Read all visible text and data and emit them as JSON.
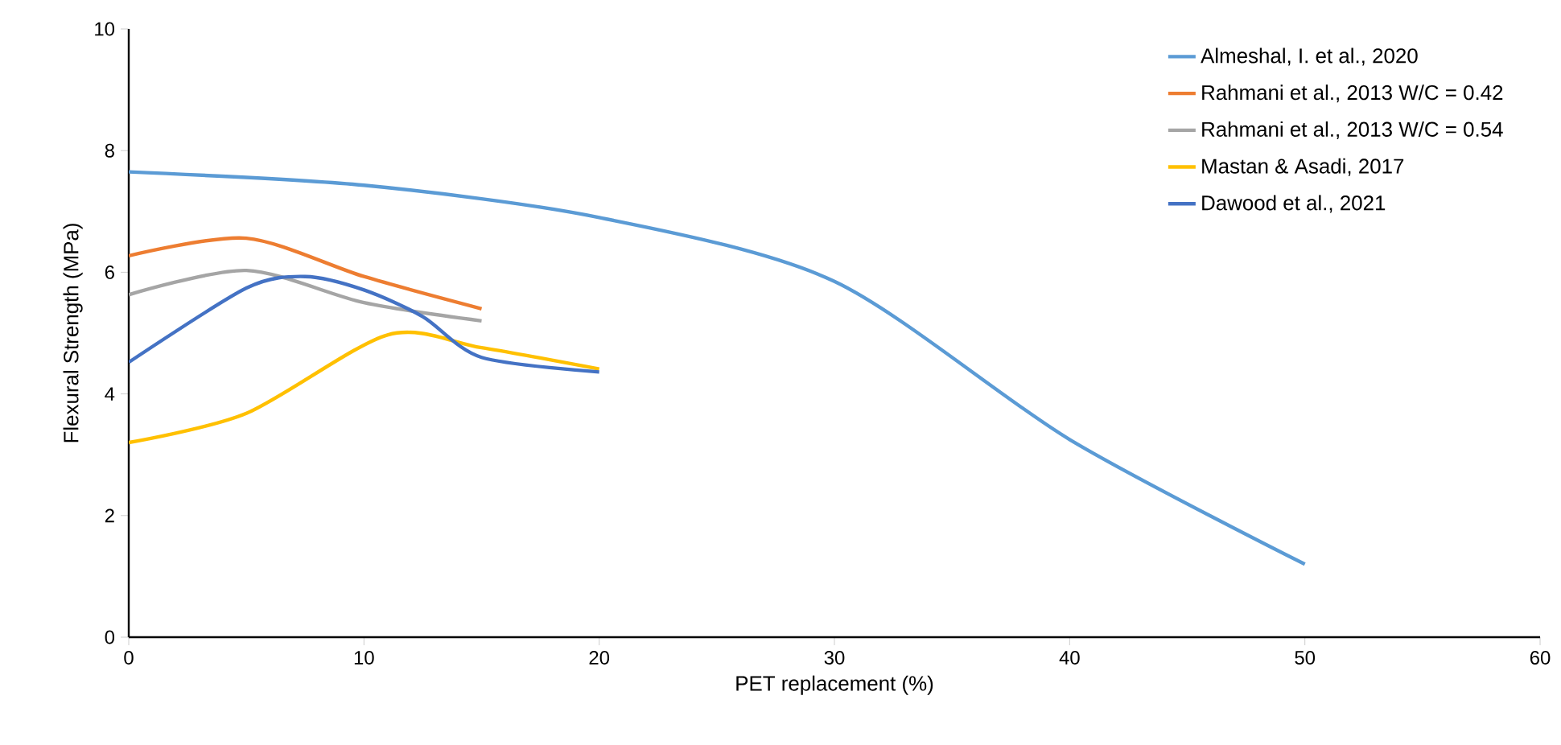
{
  "chart_data": {
    "type": "line",
    "xlabel": "PET replacement (%)",
    "ylabel": "Flexural Strength (MPa)",
    "xlim": [
      0,
      60
    ],
    "xticks": [
      0,
      10,
      20,
      30,
      40,
      50,
      60
    ],
    "ylim": [
      0,
      10
    ],
    "yticks": [
      0,
      2,
      4,
      6,
      8,
      10
    ],
    "grid": false,
    "legend": "top right",
    "marker": "none",
    "line_style": "solid",
    "series": [
      {
        "name": "Almeshal, I. et al., 2020",
        "color": "#5b9bd5",
        "x": [
          0,
          10,
          20,
          30,
          40,
          50
        ],
        "values": [
          7.65,
          7.43,
          6.9,
          5.85,
          3.25,
          1.2
        ]
      },
      {
        "name": "Rahmani et al., 2013 W/C = 0.42",
        "color": "#ed7d31",
        "x": [
          0,
          5,
          10,
          15
        ],
        "values": [
          6.27,
          6.56,
          5.93,
          5.4
        ]
      },
      {
        "name": "Rahmani et al., 2013 W/C = 0.54",
        "color": "#a5a5a5",
        "x": [
          0,
          5,
          10,
          15
        ],
        "values": [
          5.63,
          6.03,
          5.5,
          5.2
        ]
      },
      {
        "name": "Mastan & Asadi, 2017",
        "color": "#ffc000",
        "x": [
          0,
          5,
          11,
          15,
          20
        ],
        "values": [
          3.2,
          3.68,
          4.97,
          4.76,
          4.41
        ]
      },
      {
        "name": "Dawood et al., 2021",
        "color": "#4472c4",
        "x": [
          0,
          5,
          7.5,
          10,
          12.5,
          15,
          20
        ],
        "values": [
          4.52,
          5.74,
          5.93,
          5.71,
          5.27,
          4.6,
          4.36
        ]
      }
    ]
  }
}
